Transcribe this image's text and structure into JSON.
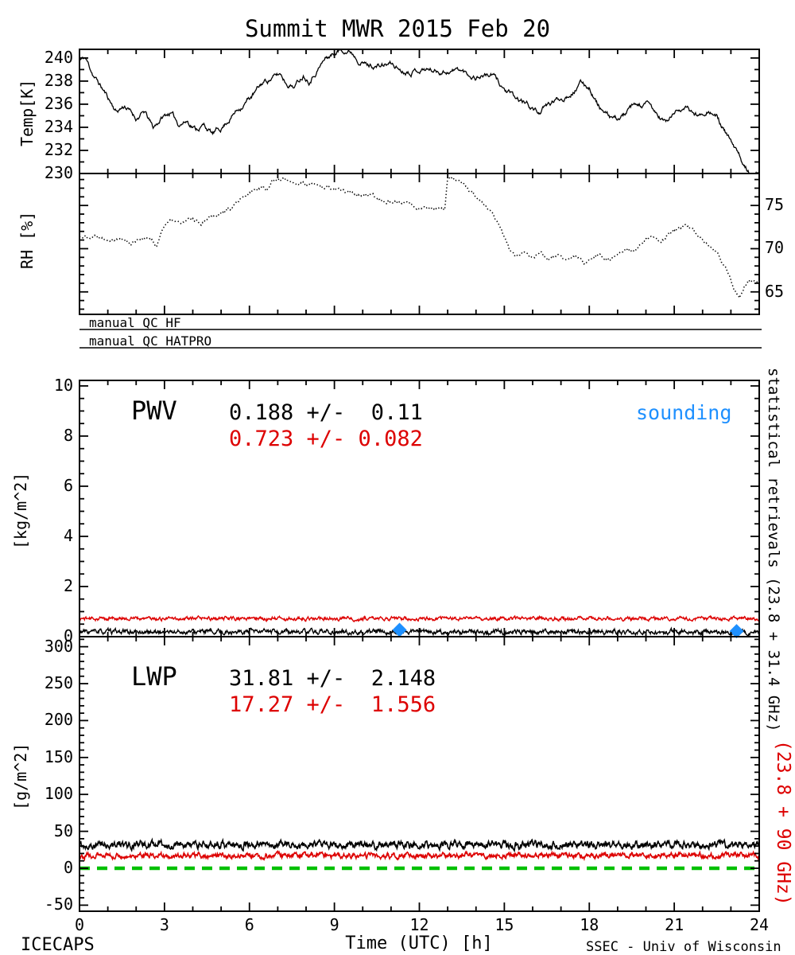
{
  "title": "Summit MWR 2015 Feb 20",
  "footer": {
    "left": "ICECAPS",
    "right": "SSEC - Univ of Wisconsin"
  },
  "x_axis": {
    "label": "Time (UTC) [h]",
    "ticks": [
      0,
      3,
      6,
      9,
      12,
      15,
      18,
      21,
      24
    ],
    "range": [
      0,
      24
    ],
    "minor_step": 1
  },
  "qc": {
    "rows": [
      {
        "label": "manual QC HF"
      },
      {
        "label": "manual QC HATPRO"
      }
    ]
  },
  "right_labels": {
    "black": "statistical retrievals (23.8 + 31.4 GHz)",
    "red": "(23.8 + 90 GHz)"
  },
  "colors": {
    "black": "#000000",
    "red": "#dd0000",
    "green": "#00c000",
    "blue": "#1e90ff"
  },
  "chart_data": [
    {
      "type": "line",
      "name": "temperature",
      "ylabel": "Temp[K]",
      "ylim": [
        230,
        240.75
      ],
      "yticks": [
        230,
        232,
        234,
        236,
        238,
        240
      ],
      "yminor": 1,
      "series": [
        {
          "name": "surface temperature",
          "color": "#000000",
          "style": "solid",
          "keypoints": [
            [
              0,
              239.8
            ],
            [
              0.2,
              240
            ],
            [
              0.5,
              238.5
            ],
            [
              1,
              236.6
            ],
            [
              1.3,
              235.4
            ],
            [
              1.6,
              235.9
            ],
            [
              2,
              234.8
            ],
            [
              2.3,
              235.3
            ],
            [
              2.6,
              233.9
            ],
            [
              2.9,
              234.8
            ],
            [
              3.2,
              235.3
            ],
            [
              3.5,
              234.3
            ],
            [
              3.8,
              234.6
            ],
            [
              4.1,
              233.9
            ],
            [
              4.4,
              234.2
            ],
            [
              4.7,
              233.4
            ],
            [
              5,
              233.9
            ],
            [
              5.3,
              234.8
            ],
            [
              5.6,
              235.6
            ],
            [
              5.9,
              236.3
            ],
            [
              6.2,
              237
            ],
            [
              6.5,
              237.9
            ],
            [
              6.8,
              238.3
            ],
            [
              7.1,
              238.6
            ],
            [
              7.3,
              237.9
            ],
            [
              7.6,
              237.6
            ],
            [
              7.9,
              238.6
            ],
            [
              8.1,
              238.2
            ],
            [
              8.4,
              239.1
            ],
            [
              8.7,
              240
            ],
            [
              9,
              240.4
            ],
            [
              9.3,
              240.8
            ],
            [
              9.6,
              240.6
            ],
            [
              9.9,
              239.9
            ],
            [
              10.2,
              239.4
            ],
            [
              10.6,
              239.3
            ],
            [
              11,
              239.5
            ],
            [
              11.4,
              238.9
            ],
            [
              11.8,
              239
            ],
            [
              12.2,
              239.1
            ],
            [
              12.6,
              238.9
            ],
            [
              13,
              238.9
            ],
            [
              13.4,
              239
            ],
            [
              13.7,
              238.6
            ],
            [
              14,
              238.4
            ],
            [
              14.3,
              238.6
            ],
            [
              14.6,
              238.5
            ],
            [
              15,
              237.3
            ],
            [
              15.4,
              236.4
            ],
            [
              15.8,
              236
            ],
            [
              16.2,
              235.3
            ],
            [
              16.5,
              235.8
            ],
            [
              16.8,
              236.3
            ],
            [
              17.1,
              236.6
            ],
            [
              17.4,
              237.2
            ],
            [
              17.7,
              237.8
            ],
            [
              18,
              237.5
            ],
            [
              18.3,
              236
            ],
            [
              18.6,
              235
            ],
            [
              18.9,
              234.6
            ],
            [
              19.2,
              235
            ],
            [
              19.5,
              235.6
            ],
            [
              19.8,
              235.8
            ],
            [
              20.1,
              235.9
            ],
            [
              20.4,
              235
            ],
            [
              20.7,
              234.4
            ],
            [
              21,
              235.2
            ],
            [
              21.3,
              235.8
            ],
            [
              21.6,
              235.3
            ],
            [
              21.9,
              235
            ],
            [
              22.2,
              235.7
            ],
            [
              22.5,
              234.9
            ],
            [
              22.8,
              233.5
            ],
            [
              23.1,
              232.2
            ],
            [
              23.4,
              230.9
            ],
            [
              23.7,
              230.2
            ],
            [
              24,
              229.9
            ]
          ]
        }
      ]
    },
    {
      "type": "line",
      "name": "relative-humidity",
      "ylabel": "RH [%]",
      "ylim": [
        62.4,
        78.7
      ],
      "yticks": [
        65,
        70,
        75
      ],
      "yminor": 1,
      "tick_label_side": "right",
      "series": [
        {
          "name": "relative humidity",
          "color": "#000000",
          "style": "dotted",
          "keypoints": [
            [
              0,
              71.4
            ],
            [
              0.5,
              71.5
            ],
            [
              1,
              71.3
            ],
            [
              1.5,
              71.2
            ],
            [
              1.8,
              70.6
            ],
            [
              2.1,
              71.3
            ],
            [
              2.5,
              71.2
            ],
            [
              2.7,
              70.2
            ],
            [
              3,
              72.9
            ],
            [
              3.3,
              73.2
            ],
            [
              3.6,
              72.9
            ],
            [
              4,
              73.4
            ],
            [
              4.3,
              73
            ],
            [
              4.6,
              73.9
            ],
            [
              5,
              74.2
            ],
            [
              5.4,
              74.8
            ],
            [
              5.8,
              75.8
            ],
            [
              6.2,
              76.8
            ],
            [
              6.5,
              77.4
            ],
            [
              6.6,
              76.6
            ],
            [
              6.8,
              77.9
            ],
            [
              7,
              78.1
            ],
            [
              7.5,
              77.8
            ],
            [
              8,
              77.4
            ],
            [
              8.5,
              77.2
            ],
            [
              9,
              76.8
            ],
            [
              9.5,
              76.6
            ],
            [
              10,
              76.2
            ],
            [
              10.5,
              75.8
            ],
            [
              11,
              75.5
            ],
            [
              11.5,
              75.2
            ],
            [
              12,
              74.9
            ],
            [
              12.5,
              74.7
            ],
            [
              12.9,
              74.4
            ],
            [
              13,
              78.4
            ],
            [
              13.3,
              77.9
            ],
            [
              13.6,
              77.2
            ],
            [
              13.9,
              76.4
            ],
            [
              14.2,
              75.4
            ],
            [
              14.5,
              74.3
            ],
            [
              14.8,
              72.9
            ],
            [
              15,
              71.4
            ],
            [
              15.2,
              69.8
            ],
            [
              15.4,
              68.9
            ],
            [
              15.7,
              69.7
            ],
            [
              16,
              68.9
            ],
            [
              16.3,
              69.4
            ],
            [
              16.6,
              68.8
            ],
            [
              16.9,
              69.2
            ],
            [
              17.2,
              68.6
            ],
            [
              17.5,
              69
            ],
            [
              17.8,
              68.4
            ],
            [
              18.1,
              68.8
            ],
            [
              18.4,
              69.3
            ],
            [
              18.7,
              68.7
            ],
            [
              19,
              69.6
            ],
            [
              19.3,
              70.2
            ],
            [
              19.6,
              69.7
            ],
            [
              19.9,
              70.8
            ],
            [
              20.2,
              71.3
            ],
            [
              20.5,
              70.6
            ],
            [
              20.8,
              71.6
            ],
            [
              21.1,
              72.1
            ],
            [
              21.4,
              72.6
            ],
            [
              21.7,
              71.9
            ],
            [
              22,
              70.9
            ],
            [
              22.3,
              70
            ],
            [
              22.6,
              69.1
            ],
            [
              22.9,
              67.3
            ],
            [
              23.1,
              65.3
            ],
            [
              23.3,
              64.3
            ],
            [
              23.5,
              65.9
            ],
            [
              23.7,
              66.4
            ],
            [
              24,
              66.6
            ]
          ]
        }
      ]
    },
    {
      "type": "line",
      "name": "pwv",
      "label": "PWV",
      "ylabel": "[kg/m^2]",
      "ylim": [
        0,
        10.22
      ],
      "yticks": [
        0,
        2,
        4,
        6,
        8,
        10
      ],
      "yminor": 0.5,
      "stats_black": "0.188 +/-  0.11",
      "stats_red": "0.723 +/- 0.082",
      "sounding_label": "sounding",
      "series": [
        {
          "name": "PWV statistical retrieval 23.8+31.4 GHz",
          "color": "#000000",
          "mean": 0.188,
          "std": 0.11
        },
        {
          "name": "PWV statistical retrieval 23.8+90 GHz",
          "color": "#dd0000",
          "mean": 0.723,
          "std": 0.082
        }
      ],
      "sounding_points": [
        {
          "t": 11.3,
          "value": 0.27
        },
        {
          "t": 23.2,
          "value": 0.22
        }
      ]
    },
    {
      "type": "line",
      "name": "lwp",
      "label": "LWP",
      "ylabel": "[g/m^2]",
      "ylim": [
        -58.2,
        313.6
      ],
      "yticks": [
        -50,
        0,
        50,
        100,
        150,
        200,
        250,
        300
      ],
      "yminor": 10,
      "stats_black": "31.81 +/-  2.148",
      "stats_red": "17.27 +/-  1.556",
      "series": [
        {
          "name": "LWP statistical retrieval 23.8+31.4 GHz",
          "color": "#000000",
          "mean": 31.81,
          "std": 2.148
        },
        {
          "name": "LWP statistical retrieval 23.8+90 GHz",
          "color": "#dd0000",
          "mean": 17.27,
          "std": 1.556
        }
      ],
      "zero_line": {
        "value": 0,
        "color": "#00c000",
        "style": "dashed"
      }
    }
  ]
}
